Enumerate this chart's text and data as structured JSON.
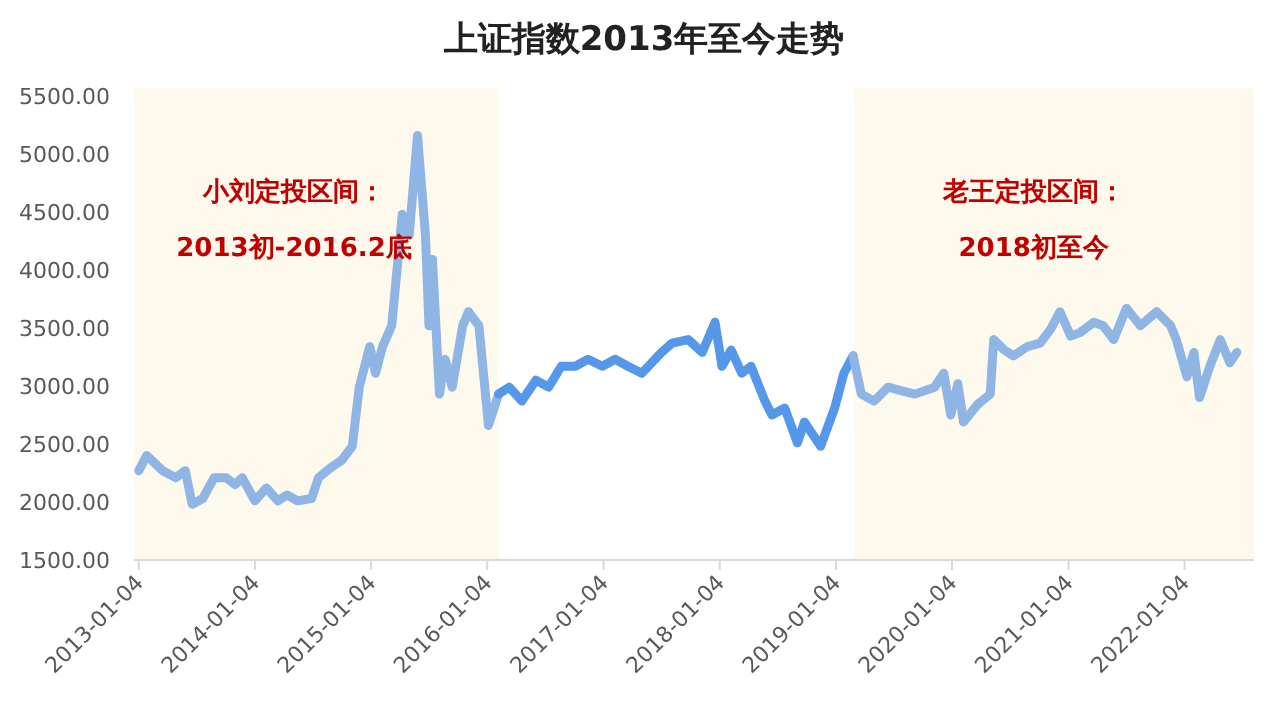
{
  "chart_data": {
    "type": "line",
    "title": "上证指数2013年至今走势",
    "xlim": [
      "2012-12-20",
      "2022-08-10"
    ],
    "xticks": [
      {
        "value": "2013-01-04",
        "label": "2013-01-04"
      },
      {
        "value": "2014-01-04",
        "label": "2014-01-04"
      },
      {
        "value": "2015-01-04",
        "label": "2015-01-04"
      },
      {
        "value": "2016-01-04",
        "label": "2016-01-04"
      },
      {
        "value": "2017-01-04",
        "label": "2017-01-04"
      },
      {
        "value": "2018-01-04",
        "label": "2018-01-04"
      },
      {
        "value": "2019-01-04",
        "label": "2019-01-04"
      },
      {
        "value": "2020-01-04",
        "label": "2020-01-04"
      },
      {
        "value": "2021-01-04",
        "label": "2021-01-04"
      },
      {
        "value": "2022-01-04",
        "label": "2022-01-04"
      }
    ],
    "ylim": [
      1500,
      5500
    ],
    "yticks": [
      {
        "value": 1500,
        "label": "1500.00"
      },
      {
        "value": 2000,
        "label": "2000.00"
      },
      {
        "value": 2500,
        "label": "2500.00"
      },
      {
        "value": 3000,
        "label": "3000.00"
      },
      {
        "value": 3500,
        "label": "3500.00"
      },
      {
        "value": 4000,
        "label": "4000.00"
      },
      {
        "value": 4500,
        "label": "4500.00"
      },
      {
        "value": 5000,
        "label": "5000.00"
      },
      {
        "value": 5500,
        "label": "5500.00"
      }
    ],
    "bands": [
      {
        "axis": "x",
        "from": "2012-12-20",
        "to": "2016-02-09",
        "label": "小刘定投区间：\n2013初-2016.2底",
        "color": "#fdf9ec"
      },
      {
        "axis": "x",
        "from": "2019-03-01",
        "to": "2022-08-10",
        "label": "老王定投区间：\n2018初至今",
        "color": "#fdf9ec"
      }
    ],
    "series": [
      {
        "color": "#8fb5e5",
        "x": [
          "2013-01-04",
          "2013-01-29",
          "2013-03-20",
          "2013-05-01",
          "2013-05-30",
          "2013-06-21",
          "2013-07-24",
          "2013-08-29",
          "2013-10-05",
          "2013-11-03",
          "2013-11-25",
          "2014-01-04",
          "2014-02-09",
          "2014-03-17",
          "2014-04-15",
          "2014-05-18",
          "2014-07-01",
          "2014-07-23",
          "2014-09-01",
          "2014-10-04",
          "2014-11-06",
          "2014-11-28",
          "2014-12-31",
          "2015-01-18",
          "2015-02-09",
          "2015-03-10",
          "2015-04-12",
          "2015-05-04",
          "2015-05-30",
          "2015-06-24",
          "2015-07-05",
          "2015-07-16",
          "2015-08-07",
          "2015-08-25",
          "2015-09-16",
          "2015-10-19",
          "2015-11-06",
          "2015-12-09",
          "2016-01-08",
          "2016-02-09"
        ],
        "values": [
          2270,
          2400,
          2270,
          2210,
          2270,
          1980,
          2030,
          2210,
          2210,
          2150,
          2210,
          2010,
          2120,
          2010,
          2060,
          2010,
          2030,
          2210,
          2300,
          2360,
          2480,
          2990,
          3340,
          3110,
          3340,
          3520,
          4480,
          4300,
          5160,
          4300,
          3520,
          4090,
          2930,
          3230,
          2990,
          3520,
          3640,
          3520,
          2660,
          2930
        ]
      },
      {
        "color": "#5597e8",
        "x": [
          "2016-02-09",
          "2016-03-13",
          "2016-04-22",
          "2016-06-05",
          "2016-07-15",
          "2016-08-24",
          "2016-10-07",
          "2016-11-16",
          "2016-12-31",
          "2017-02-09",
          "2017-03-21",
          "2017-05-04",
          "2017-07-05",
          "2017-08-07",
          "2017-09-27",
          "2017-11-10",
          "2017-12-20",
          "2018-01-11",
          "2018-02-09",
          "2018-03-14",
          "2018-04-12",
          "2018-05-26",
          "2018-06-17",
          "2018-07-27",
          "2018-09-05",
          "2018-09-27",
          "2018-11-17",
          "2018-12-31",
          "2019-01-29",
          "2019-02-27"
        ],
        "values": [
          2930,
          2990,
          2870,
          3050,
          2990,
          3170,
          3170,
          3230,
          3170,
          3230,
          3170,
          3110,
          3290,
          3370,
          3400,
          3290,
          3550,
          3170,
          3310,
          3110,
          3170,
          2870,
          2750,
          2810,
          2510,
          2690,
          2480,
          2810,
          3110,
          3260
        ]
      },
      {
        "color": "#8fb5e5",
        "x": [
          "2019-02-27",
          "2019-03-25",
          "2019-05-04",
          "2019-06-17",
          "2019-07-27",
          "2019-09-09",
          "2019-11-10",
          "2019-12-09",
          "2019-12-31",
          "2020-01-22",
          "2020-02-09",
          "2020-03-24",
          "2020-05-03",
          "2020-05-14",
          "2020-06-16",
          "2020-07-15",
          "2020-08-28",
          "2020-10-07",
          "2020-11-09",
          "2020-12-08",
          "2021-01-11",
          "2021-02-09",
          "2021-03-25",
          "2021-04-23",
          "2021-05-26",
          "2021-07-05",
          "2021-08-18",
          "2021-10-08",
          "2021-11-21",
          "2021-12-09",
          "2022-01-11",
          "2022-02-02",
          "2022-02-20",
          "2022-03-24",
          "2022-04-26",
          "2022-05-26",
          "2022-06-17"
        ],
        "values": [
          3260,
          2930,
          2870,
          2990,
          2960,
          2930,
          2990,
          3110,
          2750,
          3020,
          2690,
          2840,
          2930,
          3400,
          3310,
          3260,
          3340,
          3370,
          3490,
          3640,
          3430,
          3460,
          3550,
          3520,
          3400,
          3670,
          3520,
          3640,
          3520,
          3400,
          3080,
          3290,
          2900,
          3170,
          3400,
          3200,
          3290
        ]
      }
    ]
  }
}
